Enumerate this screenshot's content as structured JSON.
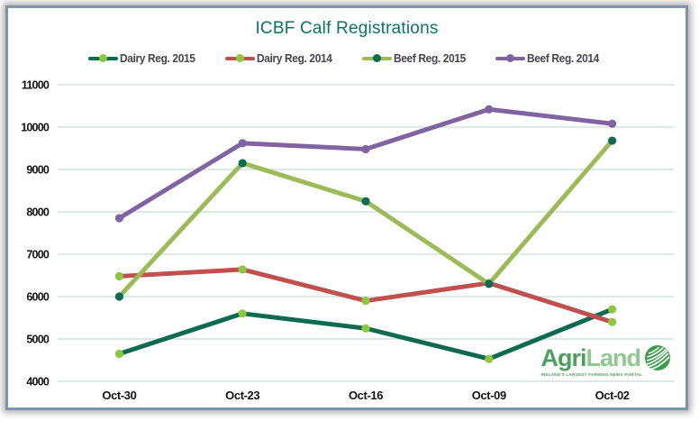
{
  "window": {
    "border_color": "#7e94ab"
  },
  "title": "ICBF Calf Registrations",
  "title_color": "#0c7268",
  "logo": {
    "part1": "Agri",
    "part2": "Land",
    "tagline": "IRELAND'S LARGEST FARMING NEWS PORTAL",
    "part1_color": "#4f9e5f",
    "part2_color": "#8fc98f",
    "globe_color": "#3f9b4d",
    "tagline_color": "#4f9e5f"
  },
  "chart_data": {
    "type": "line",
    "title": "ICBF Calf Registrations",
    "categories": [
      "Oct-30",
      "Oct-23",
      "Oct-16",
      "Oct-09",
      "Oct-02"
    ],
    "series": [
      {
        "name": "Dairy Reg. 2015",
        "values": [
          4650,
          5600,
          5250,
          4530,
          5700
        ],
        "line_color": "#0e6b50",
        "marker_color": "#8dc63f"
      },
      {
        "name": "Dairy Reg. 2014",
        "values": [
          6480,
          6640,
          5900,
          6320,
          5400
        ],
        "line_color": "#c0504d",
        "marker_color": "#8dc63f"
      },
      {
        "name": "Beef Reg. 2015",
        "values": [
          6000,
          9150,
          8250,
          6300,
          9680
        ],
        "line_color": "#9bbb59",
        "marker_color": "#0e6b50"
      },
      {
        "name": "Beef Reg. 2014",
        "values": [
          7850,
          9620,
          9480,
          10420,
          10080
        ],
        "line_color": "#8064a2",
        "marker_color": "#8064a2"
      }
    ],
    "xlabel": "",
    "ylabel": "",
    "ylim": [
      4000,
      11000
    ],
    "yticks": [
      4000,
      5000,
      6000,
      7000,
      8000,
      9000,
      10000,
      11000
    ],
    "grid": true,
    "gridline_color": "#c7dcd8",
    "legend_position": "top",
    "legend_text_color": "#45454f",
    "axis_label_color": "#141414"
  }
}
